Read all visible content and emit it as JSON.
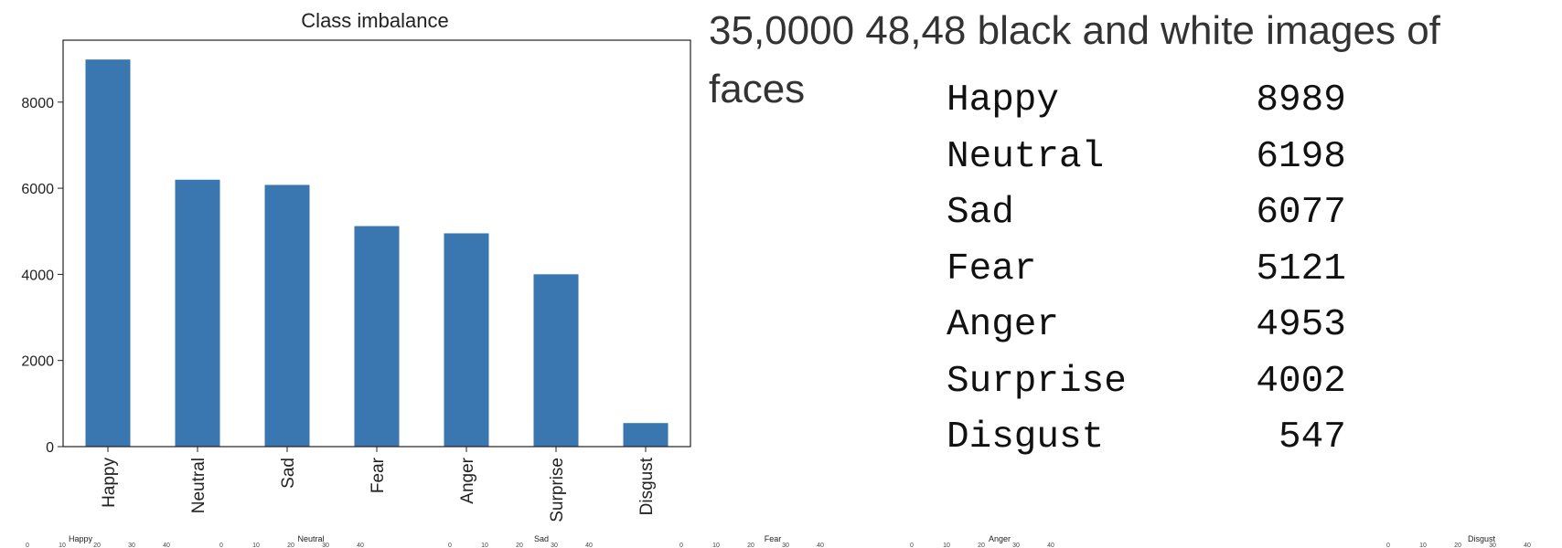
{
  "chart_data": {
    "type": "bar",
    "title": "Class imbalance",
    "categories": [
      "Happy",
      "Neutral",
      "Sad",
      "Fear",
      "Anger",
      "Surprise",
      "Disgust"
    ],
    "values": [
      8989,
      6198,
      6077,
      5121,
      4953,
      4002,
      547
    ],
    "ylim": [
      0,
      9438
    ],
    "yticks": [
      0,
      2000,
      4000,
      6000,
      8000
    ],
    "bar_color": "#3a76af",
    "grid": false,
    "legend": "none"
  },
  "description": {
    "line1": "35,0000 48,48 black and white images of",
    "line2": "faces"
  },
  "counts_table": [
    {
      "label": "Happy",
      "value": "8989"
    },
    {
      "label": "Neutral",
      "value": "6198"
    },
    {
      "label": "Sad",
      "value": "6077"
    },
    {
      "label": "Fear",
      "value": "5121"
    },
    {
      "label": "Anger",
      "value": "4953"
    },
    {
      "label": "Surprise",
      "value": "4002"
    },
    {
      "label": "Disgust",
      "value": "547"
    }
  ],
  "thumbnail_strip": {
    "titles": [
      "Happy",
      "Neutral",
      "Sad",
      "Fear",
      "Anger",
      "Disgust"
    ],
    "ticks": [
      "0",
      "10",
      "20",
      "30",
      "40"
    ]
  }
}
